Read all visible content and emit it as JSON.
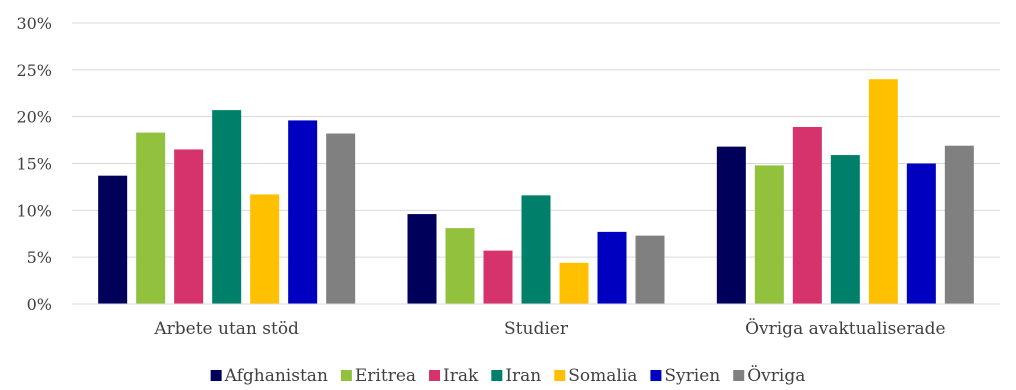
{
  "chart_data": {
    "type": "bar",
    "title": "",
    "xlabel": "",
    "ylabel": "",
    "ylim": [
      0,
      30
    ],
    "yticks": [
      "0%",
      "5%",
      "10%",
      "15%",
      "20%",
      "25%",
      "30%"
    ],
    "ytick_values": [
      0,
      5,
      10,
      15,
      20,
      25,
      30
    ],
    "grid": true,
    "legend_position": "bottom",
    "categories": [
      "Arbete utan stöd",
      "Studier",
      "Övriga avaktualiserade"
    ],
    "series": [
      {
        "name": "Afghanistan",
        "color": "#00005a",
        "values": [
          13.7,
          9.6,
          16.8
        ]
      },
      {
        "name": "Eritrea",
        "color": "#92c13e",
        "values": [
          18.3,
          8.1,
          14.8
        ]
      },
      {
        "name": "Irak",
        "color": "#d6336c",
        "values": [
          16.5,
          5.7,
          18.9
        ]
      },
      {
        "name": "Iran",
        "color": "#00806a",
        "values": [
          20.7,
          11.6,
          15.9
        ]
      },
      {
        "name": "Somalia",
        "color": "#ffc000",
        "values": [
          11.7,
          4.4,
          24.0
        ]
      },
      {
        "name": "Syrien",
        "color": "#0000c0",
        "values": [
          19.6,
          7.7,
          15.0
        ]
      },
      {
        "name": "Övriga",
        "color": "#808080",
        "values": [
          18.2,
          7.3,
          16.9
        ]
      }
    ]
  }
}
